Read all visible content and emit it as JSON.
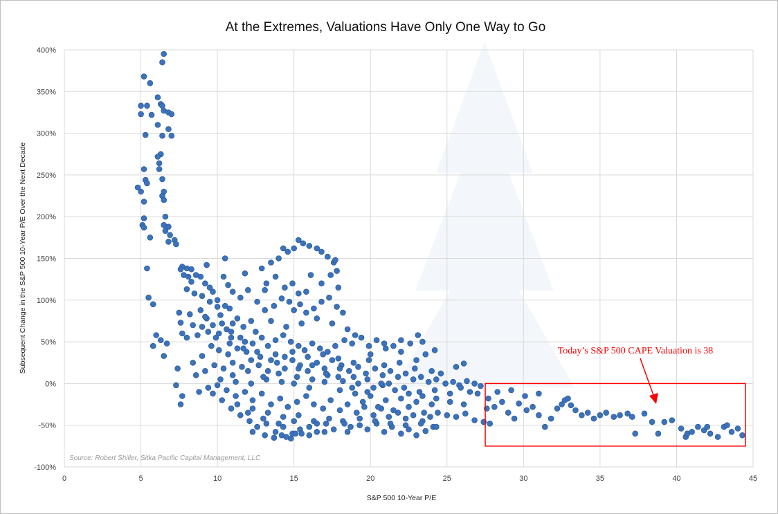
{
  "chart_data": {
    "type": "scatter",
    "title": "At the Extremes, Valuations Have Only One Way to Go",
    "xlabel": "S&P 500 10-Year P/E",
    "ylabel": "Subsequent Change in the S&P 500 10-Year P/E Over the Next Decade",
    "xlim": [
      0,
      45
    ],
    "ylim": [
      -100,
      400
    ],
    "x_ticks": [
      "0",
      "5",
      "10",
      "15",
      "20",
      "25",
      "30",
      "35",
      "40",
      "45"
    ],
    "y_ticks": [
      "400%",
      "350%",
      "300%",
      "250%",
      "200%",
      "150%",
      "100%",
      "50%",
      "0%",
      "-50%",
      "-100%"
    ],
    "grid": "vertical and horizontal",
    "source": "Source: Robert Shiller, Sitka Pacific Capital Management, LLC",
    "annotation": {
      "text": "Today’s S&P 500 CAPE Valuation is 38",
      "box_x_range": [
        27.5,
        44.5
      ],
      "box_y_range": [
        -75,
        0
      ],
      "color": "#ff0000"
    },
    "point_color": "#3b72bb",
    "points": [
      [
        6.5,
        395
      ],
      [
        6.4,
        385
      ],
      [
        5.2,
        368
      ],
      [
        5.6,
        360
      ],
      [
        6.1,
        343
      ],
      [
        6.3,
        335
      ],
      [
        6.4,
        333
      ],
      [
        5.0,
        333
      ],
      [
        5.4,
        333
      ],
      [
        6.5,
        327
      ],
      [
        6.8,
        325
      ],
      [
        7.0,
        323
      ],
      [
        5.0,
        323
      ],
      [
        5.7,
        322
      ],
      [
        6.1,
        310
      ],
      [
        6.8,
        305
      ],
      [
        5.3,
        298
      ],
      [
        6.4,
        297
      ],
      [
        7.0,
        297
      ],
      [
        6.3,
        275
      ],
      [
        6.1,
        272
      ],
      [
        6.2,
        264
      ],
      [
        5.2,
        257
      ],
      [
        6.2,
        257
      ],
      [
        6.4,
        245
      ],
      [
        5.3,
        244
      ],
      [
        5.4,
        240
      ],
      [
        4.8,
        235
      ],
      [
        5.0,
        230
      ],
      [
        6.5,
        230
      ],
      [
        6.4,
        225
      ],
      [
        6.5,
        220
      ],
      [
        5.2,
        218
      ],
      [
        6.6,
        200
      ],
      [
        5.2,
        198
      ],
      [
        5.1,
        190
      ],
      [
        6.5,
        190
      ],
      [
        6.8,
        188
      ],
      [
        5.2,
        187
      ],
      [
        6.6,
        183
      ],
      [
        6.9,
        178
      ],
      [
        5.6,
        175
      ],
      [
        7.2,
        172
      ],
      [
        6.8,
        170
      ],
      [
        7.3,
        167
      ],
      [
        5.4,
        138
      ],
      [
        7.7,
        140
      ],
      [
        7.6,
        137
      ],
      [
        8.0,
        138
      ],
      [
        8.3,
        137
      ],
      [
        7.8,
        130
      ],
      [
        8.1,
        128
      ],
      [
        8.6,
        130
      ],
      [
        8.3,
        122
      ],
      [
        8.9,
        128
      ],
      [
        8.0,
        113
      ],
      [
        9.2,
        120
      ],
      [
        8.5,
        108
      ],
      [
        9.5,
        115
      ],
      [
        9.0,
        105
      ],
      [
        9.7,
        110
      ],
      [
        5.5,
        103
      ],
      [
        5.8,
        95
      ],
      [
        7.5,
        85
      ],
      [
        8.2,
        83
      ],
      [
        8.9,
        88
      ],
      [
        9.3,
        78
      ],
      [
        10.0,
        100
      ],
      [
        10.5,
        93
      ],
      [
        10.2,
        82
      ],
      [
        10.8,
        90
      ],
      [
        11.3,
        78
      ],
      [
        9.7,
        70
      ],
      [
        10.6,
        65
      ],
      [
        11.0,
        72
      ],
      [
        11.7,
        68
      ],
      [
        12.2,
        75
      ],
      [
        10.1,
        60
      ],
      [
        10.9,
        55
      ],
      [
        7.6,
        73
      ],
      [
        8.4,
        70
      ],
      [
        7.7,
        60
      ],
      [
        8.0,
        55
      ],
      [
        8.7,
        58
      ],
      [
        9.4,
        62
      ],
      [
        10.4,
        128
      ],
      [
        10.7,
        118
      ],
      [
        11.0,
        110
      ],
      [
        11.5,
        103
      ],
      [
        12.0,
        112
      ],
      [
        12.6,
        98
      ],
      [
        13.1,
        88
      ],
      [
        13.7,
        93
      ],
      [
        14.2,
        102
      ],
      [
        14.7,
        98
      ],
      [
        15.0,
        88
      ],
      [
        15.4,
        95
      ],
      [
        15.8,
        85
      ],
      [
        16.3,
        90
      ],
      [
        16.8,
        98
      ],
      [
        17.3,
        103
      ],
      [
        17.8,
        92
      ],
      [
        18.2,
        85
      ],
      [
        14.0,
        150
      ],
      [
        14.3,
        162
      ],
      [
        14.6,
        158
      ],
      [
        15.0,
        162
      ],
      [
        15.3,
        172
      ],
      [
        15.6,
        168
      ],
      [
        16.0,
        165
      ],
      [
        16.5,
        162
      ],
      [
        16.8,
        158
      ],
      [
        17.2,
        152
      ],
      [
        17.6,
        145
      ],
      [
        17.8,
        135
      ],
      [
        17.4,
        130
      ],
      [
        13.5,
        145
      ],
      [
        13.8,
        128
      ],
      [
        14.4,
        115
      ],
      [
        14.9,
        120
      ],
      [
        15.3,
        108
      ],
      [
        13.1,
        112
      ],
      [
        17.7,
        148
      ],
      [
        16.1,
        130
      ],
      [
        6.0,
        58
      ],
      [
        6.3,
        52
      ],
      [
        5.8,
        45
      ],
      [
        6.7,
        48
      ],
      [
        6.5,
        33
      ],
      [
        7.4,
        18
      ],
      [
        7.3,
        -2
      ],
      [
        7.7,
        -15
      ],
      [
        7.6,
        -25
      ],
      [
        8.4,
        25
      ],
      [
        9.0,
        33
      ],
      [
        9.6,
        45
      ],
      [
        10.1,
        40
      ],
      [
        10.7,
        35
      ],
      [
        11.3,
        42
      ],
      [
        11.9,
        38
      ],
      [
        12.3,
        48
      ],
      [
        12.9,
        55
      ],
      [
        13.3,
        45
      ],
      [
        13.8,
        52
      ],
      [
        14.3,
        58
      ],
      [
        14.8,
        50
      ],
      [
        15.3,
        45
      ],
      [
        15.7,
        40
      ],
      [
        16.2,
        48
      ],
      [
        16.7,
        42
      ],
      [
        17.2,
        38
      ],
      [
        17.7,
        45
      ],
      [
        18.3,
        52
      ],
      [
        18.8,
        48
      ],
      [
        19.4,
        55
      ],
      [
        19.9,
        45
      ],
      [
        20.4,
        52
      ],
      [
        20.9,
        48
      ],
      [
        21.5,
        45
      ],
      [
        22.0,
        52
      ],
      [
        22.6,
        48
      ],
      [
        23.1,
        58
      ],
      [
        23.4,
        50
      ],
      [
        8.6,
        10
      ],
      [
        9.2,
        15
      ],
      [
        9.8,
        22
      ],
      [
        10.4,
        18
      ],
      [
        11.0,
        25
      ],
      [
        11.6,
        20
      ],
      [
        12.2,
        28
      ],
      [
        12.7,
        22
      ],
      [
        13.3,
        15
      ],
      [
        13.9,
        25
      ],
      [
        14.4,
        18
      ],
      [
        14.9,
        28
      ],
      [
        15.4,
        22
      ],
      [
        15.9,
        15
      ],
      [
        16.5,
        25
      ],
      [
        17.0,
        18
      ],
      [
        17.5,
        28
      ],
      [
        18.1,
        22
      ],
      [
        18.6,
        15
      ],
      [
        19.2,
        20
      ],
      [
        19.7,
        12
      ],
      [
        20.3,
        18
      ],
      [
        20.8,
        10
      ],
      [
        21.3,
        15
      ],
      [
        21.8,
        8
      ],
      [
        22.3,
        12
      ],
      [
        22.8,
        5
      ],
      [
        23.3,
        8
      ],
      [
        23.8,
        2
      ],
      [
        24.3,
        5
      ],
      [
        24.9,
        0
      ],
      [
        25.4,
        2
      ],
      [
        25.8,
        -2
      ],
      [
        26.3,
        3
      ],
      [
        26.8,
        0
      ],
      [
        27.2,
        -3
      ],
      [
        25.6,
        20
      ],
      [
        26.1,
        24
      ],
      [
        23.6,
        35
      ],
      [
        24.2,
        40
      ],
      [
        8.8,
        -10
      ],
      [
        9.4,
        -5
      ],
      [
        10.0,
        -2
      ],
      [
        10.6,
        -8
      ],
      [
        11.2,
        -15
      ],
      [
        11.8,
        -10
      ],
      [
        12.3,
        -20
      ],
      [
        12.9,
        -12
      ],
      [
        13.5,
        -25
      ],
      [
        14.1,
        -18
      ],
      [
        14.6,
        -28
      ],
      [
        15.2,
        -22
      ],
      [
        15.8,
        -15
      ],
      [
        16.3,
        -25
      ],
      [
        16.9,
        -30
      ],
      [
        17.4,
        -20
      ],
      [
        18.0,
        -32
      ],
      [
        18.5,
        -25
      ],
      [
        19.1,
        -35
      ],
      [
        19.6,
        -28
      ],
      [
        20.2,
        -38
      ],
      [
        20.7,
        -30
      ],
      [
        21.2,
        -40
      ],
      [
        21.8,
        -35
      ],
      [
        22.3,
        -42
      ],
      [
        22.8,
        -38
      ],
      [
        23.4,
        -45
      ],
      [
        23.9,
        -40
      ],
      [
        24.4,
        -35
      ],
      [
        10.9,
        -30
      ],
      [
        11.5,
        -38
      ],
      [
        12.1,
        -45
      ],
      [
        12.6,
        -52
      ],
      [
        13.2,
        -48
      ],
      [
        13.8,
        -58
      ],
      [
        14.3,
        -52
      ],
      [
        14.9,
        -60
      ],
      [
        15.4,
        -55
      ],
      [
        16.0,
        -62
      ],
      [
        16.5,
        -58
      ],
      [
        17.1,
        -48
      ],
      [
        17.6,
        -55
      ],
      [
        18.2,
        -45
      ],
      [
        18.7,
        -52
      ],
      [
        19.3,
        -42
      ],
      [
        19.8,
        -55
      ],
      [
        20.4,
        -48
      ],
      [
        20.9,
        -58
      ],
      [
        21.4,
        -52
      ],
      [
        22.0,
        -60
      ],
      [
        22.5,
        -55
      ],
      [
        23.0,
        -62
      ],
      [
        23.6,
        -57
      ],
      [
        24.1,
        -52
      ],
      [
        13.1,
        -62
      ],
      [
        13.7,
        -65
      ],
      [
        14.2,
        -62
      ],
      [
        14.8,
        -66
      ],
      [
        15.1,
        -60
      ],
      [
        12.3,
        -58
      ],
      [
        9.5,
        98
      ],
      [
        10.0,
        92
      ],
      [
        10.3,
        72
      ],
      [
        11.5,
        55
      ],
      [
        12.5,
        62
      ],
      [
        13.5,
        75
      ],
      [
        14.5,
        68
      ],
      [
        15.5,
        72
      ],
      [
        16.5,
        78
      ],
      [
        17.5,
        72
      ],
      [
        18.5,
        65
      ],
      [
        19.0,
        58
      ],
      [
        9.2,
        80
      ],
      [
        10.9,
        62
      ],
      [
        11.8,
        50
      ],
      [
        12.8,
        32
      ],
      [
        13.8,
        35
      ],
      [
        14.9,
        38
      ],
      [
        15.9,
        32
      ],
      [
        16.9,
        35
      ],
      [
        17.9,
        30
      ],
      [
        18.9,
        25
      ],
      [
        19.9,
        28
      ],
      [
        20.9,
        22
      ],
      [
        21.9,
        25
      ],
      [
        22.9,
        18
      ],
      [
        10.2,
        5
      ],
      [
        11.2,
        2
      ],
      [
        12.2,
        0
      ],
      [
        13.2,
        5
      ],
      [
        14.2,
        2
      ],
      [
        15.2,
        8
      ],
      [
        16.2,
        5
      ],
      [
        17.2,
        10
      ],
      [
        18.2,
        3
      ],
      [
        19.2,
        0
      ],
      [
        20.2,
        -5
      ],
      [
        21.2,
        0
      ],
      [
        22.2,
        -5
      ],
      [
        23.2,
        -10
      ],
      [
        24.2,
        -8
      ],
      [
        25.2,
        -12
      ],
      [
        11.0,
        10
      ],
      [
        12.0,
        15
      ],
      [
        13.0,
        8
      ],
      [
        14.0,
        12
      ],
      [
        15.0,
        0
      ],
      [
        16.0,
        -5
      ],
      [
        17.0,
        2
      ],
      [
        18.0,
        -8
      ],
      [
        19.0,
        -12
      ],
      [
        20.0,
        -15
      ],
      [
        21.0,
        -20
      ],
      [
        22.0,
        -18
      ],
      [
        23.0,
        -22
      ],
      [
        24.0,
        -25
      ],
      [
        9.7,
        -12
      ],
      [
        10.3,
        -20
      ],
      [
        11.3,
        -25
      ],
      [
        12.3,
        -30
      ],
      [
        13.3,
        -35
      ],
      [
        14.3,
        -40
      ],
      [
        15.3,
        -38
      ],
      [
        16.3,
        -45
      ],
      [
        17.3,
        -42
      ],
      [
        18.3,
        -48
      ],
      [
        19.3,
        -50
      ],
      [
        20.3,
        -45
      ],
      [
        21.3,
        -48
      ],
      [
        22.3,
        -50
      ],
      [
        23.3,
        -48
      ],
      [
        24.3,
        -52
      ],
      [
        25.0,
        -38
      ],
      [
        25.6,
        -40
      ],
      [
        26.2,
        -36
      ],
      [
        26.8,
        -44
      ],
      [
        27.4,
        -46
      ],
      [
        27.8,
        -48
      ],
      [
        27.6,
        -30
      ],
      [
        28.1,
        -28
      ],
      [
        28.6,
        -22
      ],
      [
        29.0,
        -35
      ],
      [
        29.4,
        -42
      ],
      [
        29.7,
        -24
      ],
      [
        30.2,
        -32
      ],
      [
        30.6,
        -28
      ],
      [
        31.0,
        -38
      ],
      [
        31.4,
        -52
      ],
      [
        31.8,
        -42
      ],
      [
        32.2,
        -30
      ],
      [
        32.5,
        -25
      ],
      [
        32.7,
        -20
      ],
      [
        32.9,
        -18
      ],
      [
        33.1,
        -26
      ],
      [
        33.4,
        -32
      ],
      [
        33.8,
        -38
      ],
      [
        34.2,
        -35
      ],
      [
        34.6,
        -42
      ],
      [
        35.0,
        -38
      ],
      [
        35.4,
        -35
      ],
      [
        35.9,
        -40
      ],
      [
        36.3,
        -38
      ],
      [
        36.8,
        -36
      ],
      [
        37.1,
        -40
      ],
      [
        37.3,
        -60
      ],
      [
        37.9,
        -36
      ],
      [
        38.4,
        -46
      ],
      [
        38.8,
        -60
      ],
      [
        39.2,
        -46
      ],
      [
        39.7,
        -44
      ],
      [
        40.3,
        -54
      ],
      [
        40.6,
        -64
      ],
      [
        41.0,
        -58
      ],
      [
        41.4,
        -52
      ],
      [
        41.8,
        -56
      ],
      [
        42.2,
        -60
      ],
      [
        42.7,
        -64
      ],
      [
        43.1,
        -52
      ],
      [
        43.6,
        -58
      ],
      [
        44.0,
        -54
      ],
      [
        44.3,
        -62
      ],
      [
        40.7,
        -60
      ],
      [
        42.0,
        -52
      ],
      [
        43.3,
        -50
      ],
      [
        28.3,
        -10
      ],
      [
        29.2,
        -8
      ],
      [
        30.1,
        -15
      ],
      [
        31.0,
        -12
      ],
      [
        27.7,
        -18
      ],
      [
        25.9,
        -5
      ],
      [
        26.5,
        -10
      ],
      [
        27.0,
        -12
      ],
      [
        19.5,
        -22
      ],
      [
        20.5,
        -28
      ],
      [
        21.5,
        -32
      ],
      [
        22.5,
        -28
      ],
      [
        23.5,
        -35
      ],
      [
        20.0,
        35
      ],
      [
        21.0,
        42
      ],
      [
        22.0,
        38
      ],
      [
        23.0,
        28
      ],
      [
        24.0,
        15
      ],
      [
        24.6,
        12
      ],
      [
        17.9,
        8
      ],
      [
        18.8,
        -5
      ],
      [
        19.8,
        -10
      ],
      [
        20.8,
        -2
      ],
      [
        12.0,
        -35
      ],
      [
        13.0,
        -42
      ],
      [
        14.0,
        -48
      ],
      [
        15.0,
        -45
      ],
      [
        16.0,
        -52
      ],
      [
        17.0,
        -58
      ],
      [
        14.5,
        -64
      ],
      [
        15.5,
        -60
      ],
      [
        16.5,
        -48
      ],
      [
        18.5,
        -58
      ],
      [
        9.0,
        68
      ],
      [
        9.9,
        55
      ],
      [
        10.8,
        48
      ],
      [
        11.7,
        42
      ],
      [
        12.6,
        38
      ],
      [
        13.5,
        28
      ],
      [
        14.4,
        32
      ],
      [
        15.3,
        18
      ],
      [
        16.2,
        22
      ],
      [
        17.1,
        12
      ],
      [
        18.0,
        18
      ],
      [
        18.9,
        8
      ],
      [
        19.8,
        5
      ],
      [
        20.7,
        0
      ],
      [
        21.6,
        -8
      ],
      [
        22.5,
        -12
      ],
      [
        23.4,
        -15
      ],
      [
        24.3,
        -18
      ],
      [
        25.2,
        -22
      ],
      [
        26.1,
        -25
      ],
      [
        10.5,
        150
      ],
      [
        9.3,
        142
      ],
      [
        11.8,
        132
      ],
      [
        12.9,
        138
      ],
      [
        13.2,
        120
      ],
      [
        16.8,
        120
      ],
      [
        17.9,
        115
      ],
      [
        15.8,
        110
      ]
    ]
  }
}
